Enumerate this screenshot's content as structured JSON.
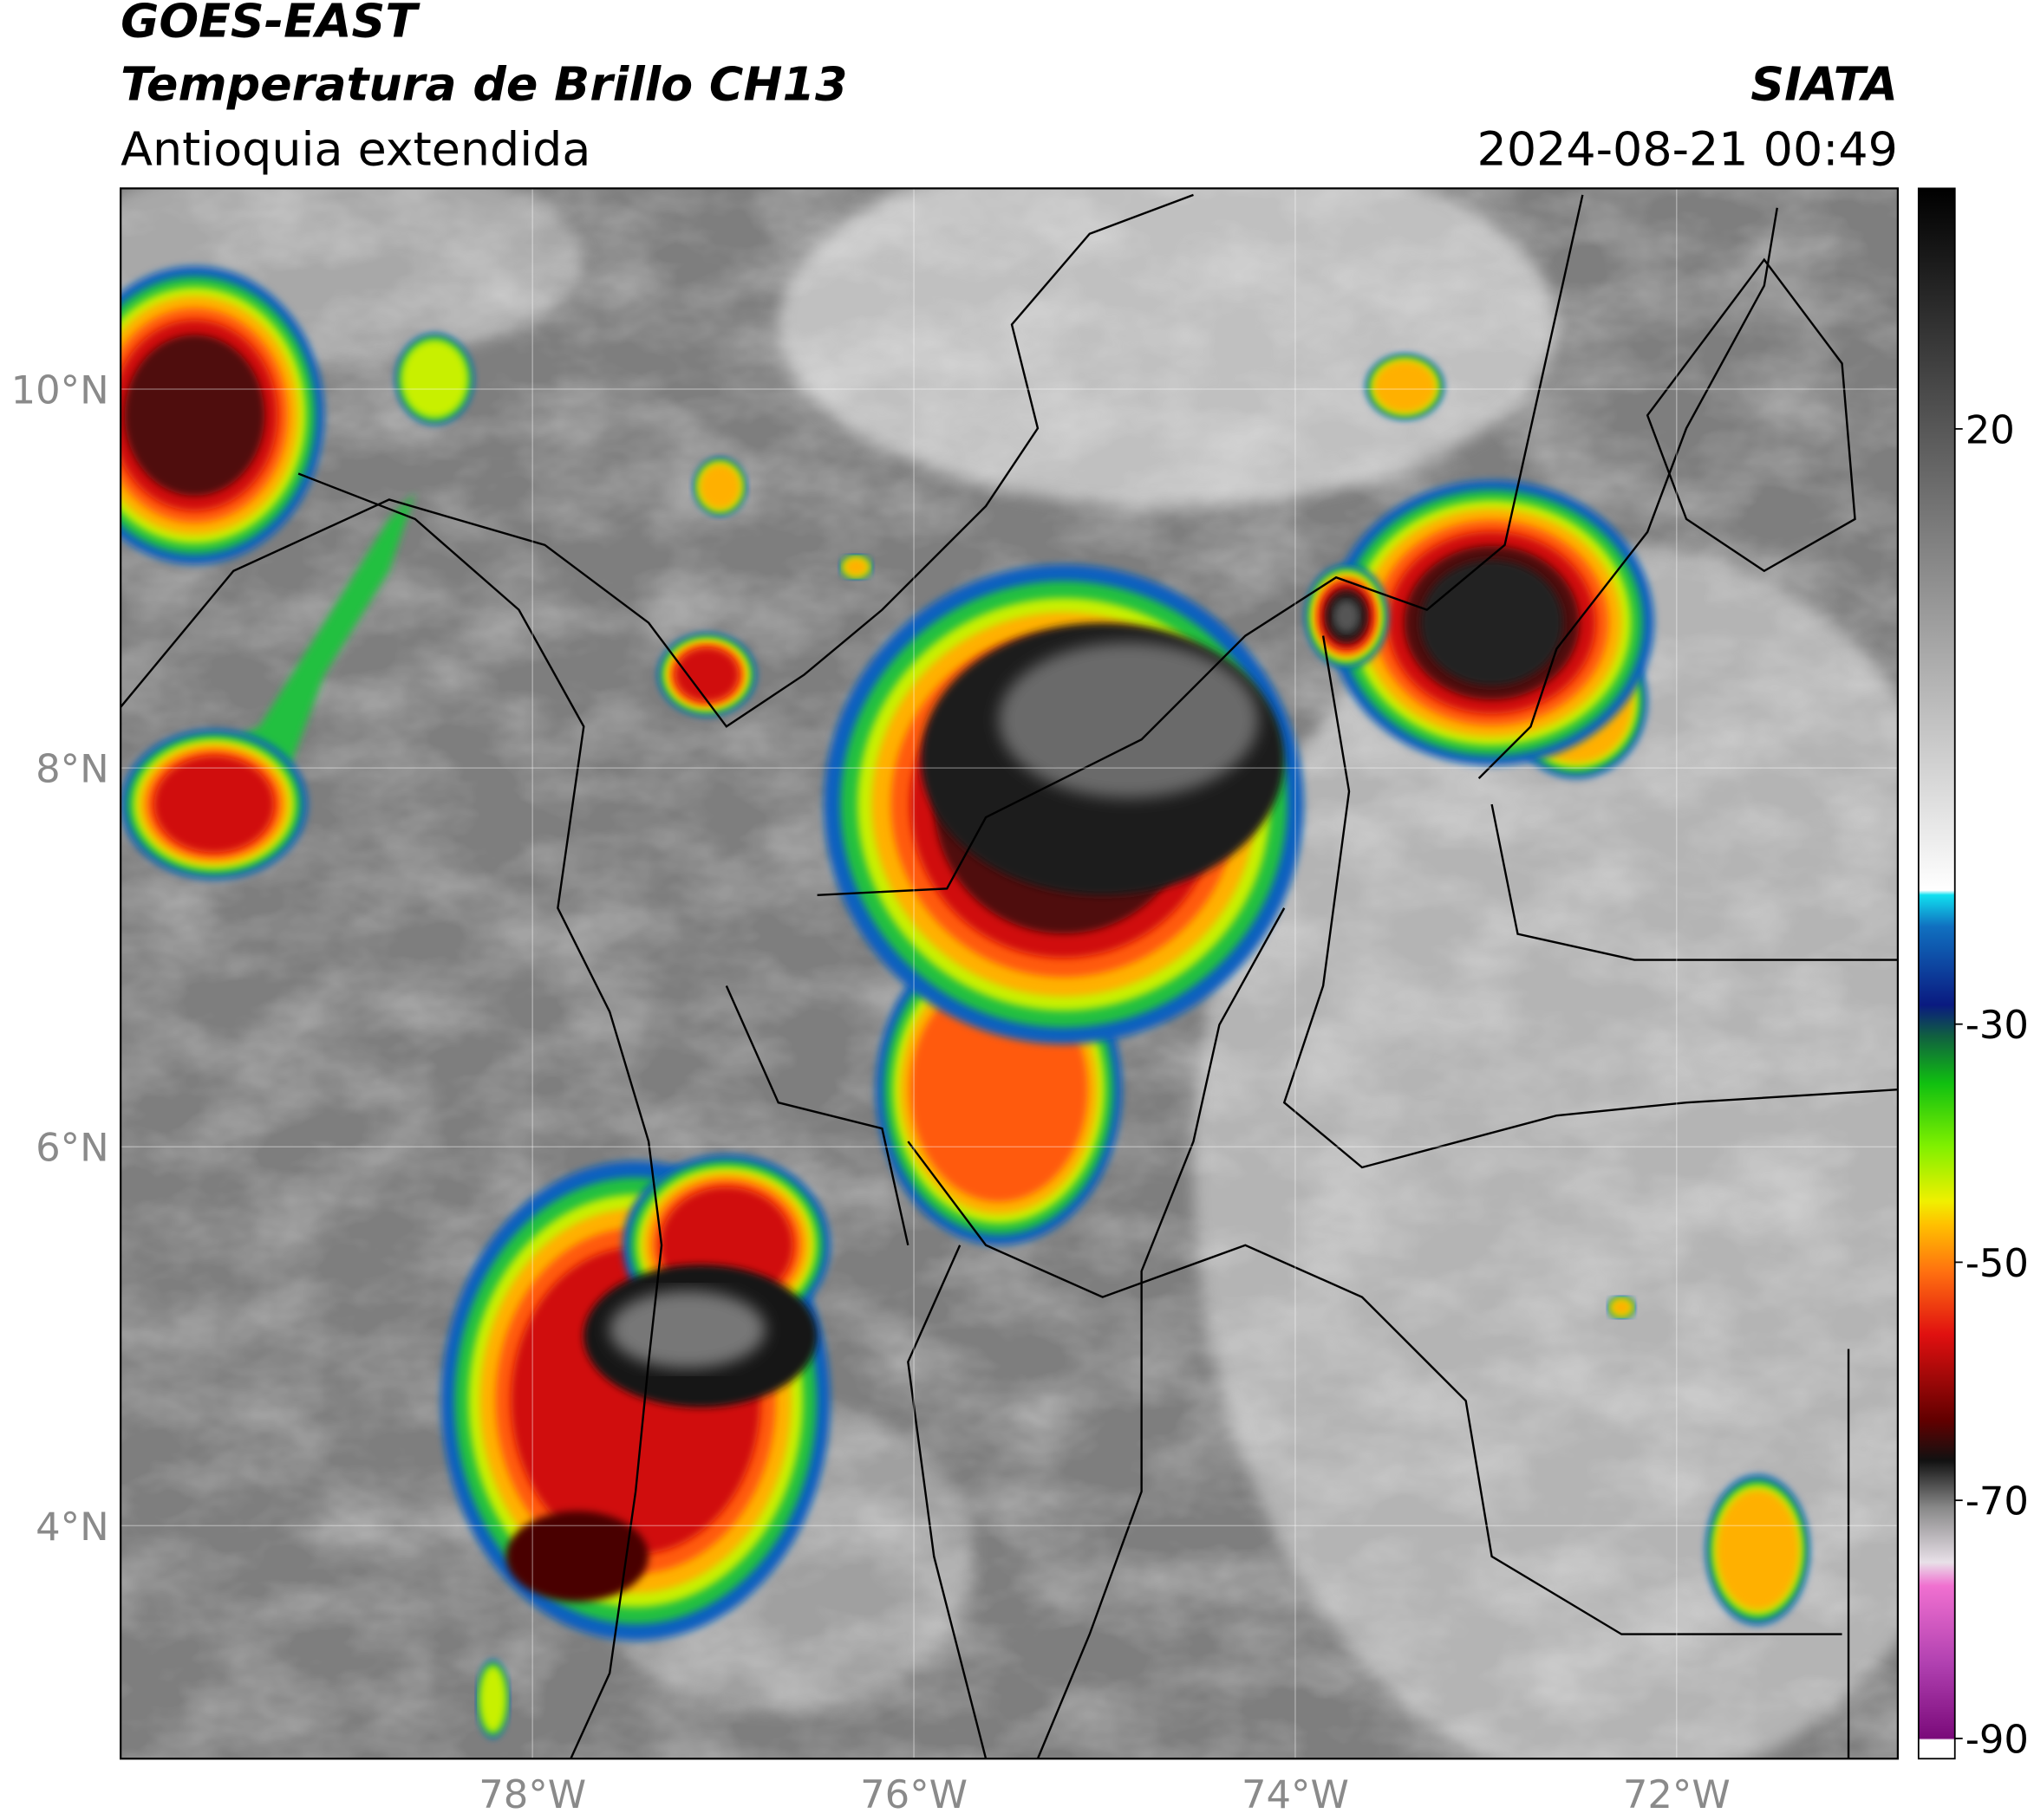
{
  "header": {
    "satellite": "GOES-EAST",
    "product": "Temperatura de Brillo CH13",
    "region": "Antioquia extendida",
    "source": "SIATA",
    "datetime": "2024-08-21 00:49"
  },
  "map": {
    "xlim": [
      -80.16,
      -70.84
    ],
    "ylim": [
      2.77,
      11.06
    ],
    "xticks": [
      {
        "value": -78,
        "label": "78°W"
      },
      {
        "value": -76,
        "label": "76°W"
      },
      {
        "value": -74,
        "label": "74°W"
      },
      {
        "value": -72,
        "label": "72°W"
      }
    ],
    "yticks": [
      {
        "value": 4,
        "label": "4°N"
      },
      {
        "value": 6,
        "label": "6°N"
      },
      {
        "value": 8,
        "label": "8°N"
      },
      {
        "value": 10,
        "label": "10°N"
      }
    ]
  },
  "colorbar": {
    "lim": [
      -91.7,
      40.2
    ],
    "ticks": [
      -90,
      -70,
      -50,
      -30,
      20
    ]
  }
}
